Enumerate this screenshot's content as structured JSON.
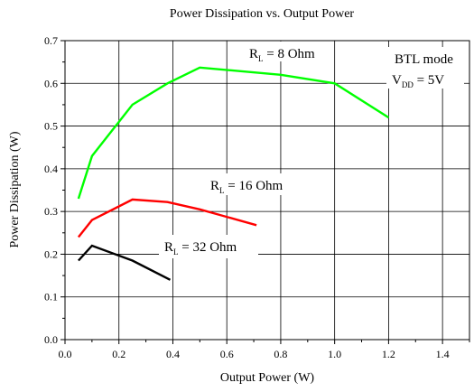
{
  "chart_data": {
    "type": "line",
    "title": "Power Dissipation vs. Output Power",
    "xlabel": "Output Power (W)",
    "ylabel": "Power Dissipation (W)",
    "xlim": [
      0,
      1.5
    ],
    "ylim": [
      0,
      0.7
    ],
    "x_ticks": [
      "0.0",
      "0.2",
      "0.4",
      "0.6",
      "0.8",
      "1.0",
      "1.2",
      "1.4"
    ],
    "y_ticks": [
      "0.0",
      "0.1",
      "0.2",
      "0.3",
      "0.4",
      "0.5",
      "0.6",
      "0.7"
    ],
    "grid": true,
    "series": [
      {
        "label_main": "R",
        "label_sub": "L",
        "label_rest": " = 8 Ohm",
        "color": "#00ff00",
        "x": [
          0.05,
          0.1,
          0.25,
          0.38,
          0.5,
          0.8,
          1.0,
          1.2
        ],
        "y": [
          0.33,
          0.43,
          0.55,
          0.6,
          0.637,
          0.62,
          0.6,
          0.52
        ]
      },
      {
        "label_main": "R",
        "label_sub": "L",
        "label_rest": " = 16 Ohm",
        "color": "#ff0000",
        "x": [
          0.05,
          0.1,
          0.25,
          0.38,
          0.5,
          0.71
        ],
        "y": [
          0.24,
          0.28,
          0.328,
          0.322,
          0.305,
          0.268
        ]
      },
      {
        "label_main": "R",
        "label_sub": "L",
        "label_rest": " = 32 Ohm",
        "color": "#000000",
        "x": [
          0.05,
          0.1,
          0.25,
          0.39
        ],
        "y": [
          0.185,
          0.22,
          0.185,
          0.14
        ]
      }
    ],
    "annotation": {
      "line1": "BTL mode",
      "v_main": "V",
      "v_sub": "DD",
      "v_rest": " = 5V"
    }
  }
}
